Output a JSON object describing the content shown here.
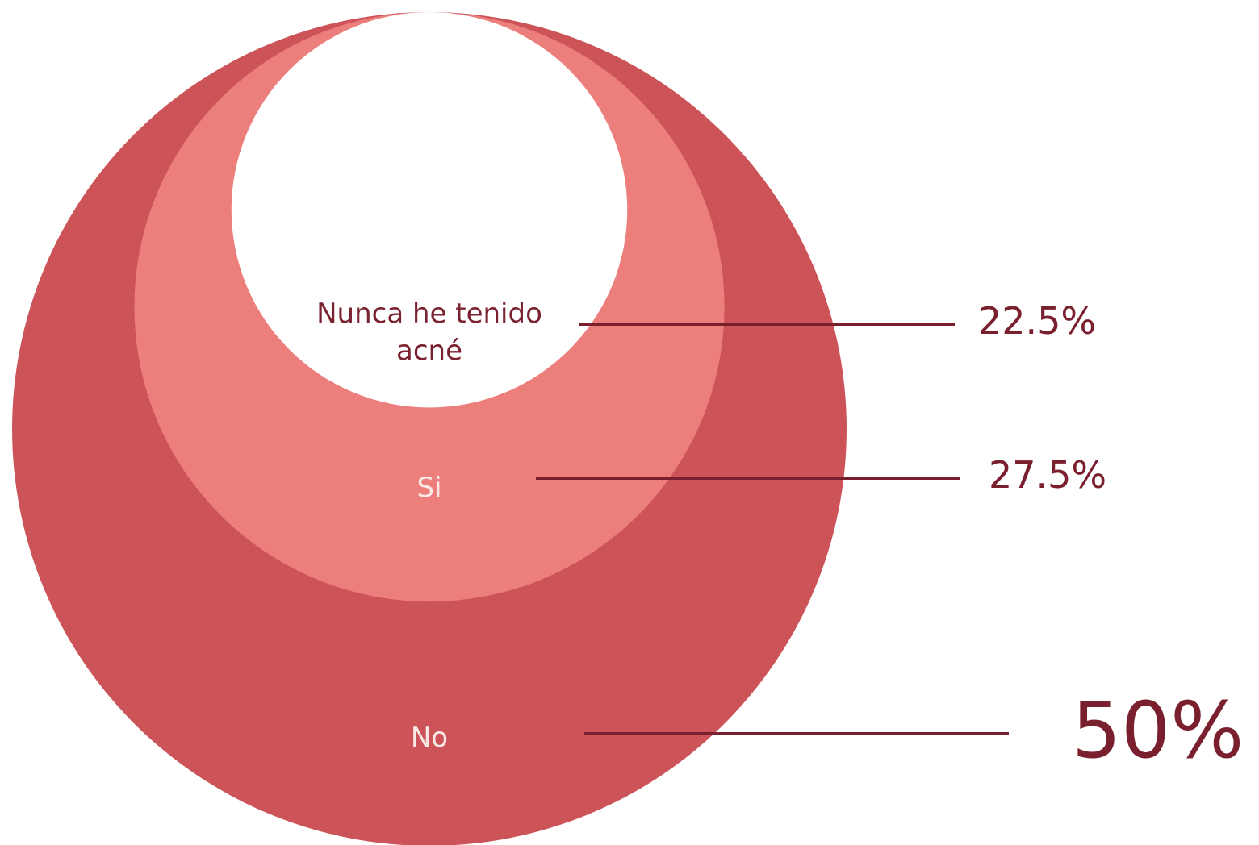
{
  "chart_data": {
    "type": "nested-circles",
    "categories": [
      "Nunca he tenido acné",
      "Si",
      "No"
    ],
    "values": [
      22.5,
      27.5,
      50
    ],
    "value_labels": [
      "22.5%",
      "27.5%",
      "50%"
    ],
    "colors": [
      "#ffffff",
      "#ec7e7c",
      "#cc5458"
    ]
  }
}
